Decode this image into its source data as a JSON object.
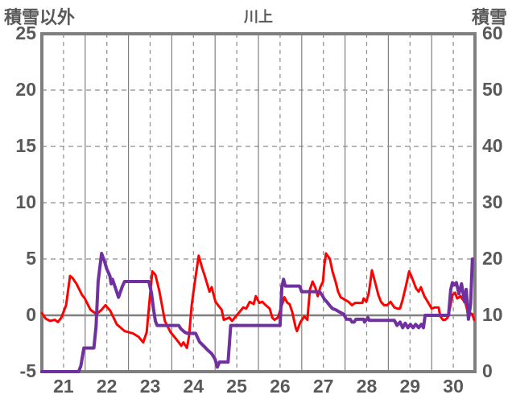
{
  "page": {
    "background": "#ffffff",
    "text_color": "#595959",
    "grid_solid_color": "#808080",
    "grid_dashed_color": "#8c8c8c",
    "border_color": "#7f7f7f"
  },
  "chart_data": {
    "type": "line",
    "title": "川上",
    "grid": true,
    "legend": "none",
    "left_axis": {
      "title": "積雪以外",
      "min": -5,
      "max": 25,
      "tick_interval": 5,
      "ticks": [
        25,
        20,
        15,
        10,
        5,
        0,
        -5
      ]
    },
    "right_axis": {
      "title": "積雪",
      "min": 0,
      "max": 60,
      "tick_interval": 10,
      "ticks": [
        60,
        50,
        40,
        30,
        20,
        10,
        0
      ]
    },
    "x_axis": {
      "tick_labels": [
        "21",
        "22",
        "23",
        "24",
        "25",
        "26",
        "27",
        "28",
        "29",
        "30"
      ],
      "range_days": [
        21,
        31
      ],
      "solid_gridlines": "day-boundaries",
      "dashed_gridlines": "half-days",
      "labels_at": "noon"
    },
    "series": [
      {
        "name": "積雪以外",
        "axis": "left",
        "color": "#ff0000",
        "width": 3,
        "points": [
          [
            21.0,
            0.2
          ],
          [
            21.09,
            -0.3
          ],
          [
            21.19,
            -0.5
          ],
          [
            21.3,
            -0.4
          ],
          [
            21.37,
            -0.6
          ],
          [
            21.45,
            -0.2
          ],
          [
            21.56,
            0.9
          ],
          [
            21.65,
            3.5
          ],
          [
            21.71,
            3.3
          ],
          [
            21.8,
            2.8
          ],
          [
            21.93,
            1.8
          ],
          [
            21.99,
            1.5
          ],
          [
            22.12,
            0.5
          ],
          [
            22.26,
            0.1
          ],
          [
            22.38,
            0.5
          ],
          [
            22.47,
            0.9
          ],
          [
            22.58,
            0.4
          ],
          [
            22.73,
            -0.8
          ],
          [
            22.91,
            -1.4
          ],
          [
            23.1,
            -1.6
          ],
          [
            23.23,
            -1.9
          ],
          [
            23.34,
            -2.4
          ],
          [
            23.42,
            -1.5
          ],
          [
            23.49,
            1.5
          ],
          [
            23.55,
            3.9
          ],
          [
            23.62,
            3.6
          ],
          [
            23.71,
            2.2
          ],
          [
            23.84,
            -0.5
          ],
          [
            23.97,
            -1.5
          ],
          [
            24.12,
            -2.2
          ],
          [
            24.22,
            -2.7
          ],
          [
            24.27,
            -2.4
          ],
          [
            24.35,
            -2.9
          ],
          [
            24.4,
            -1.8
          ],
          [
            24.46,
            0.9
          ],
          [
            24.53,
            2.9
          ],
          [
            24.62,
            5.3
          ],
          [
            24.7,
            4.2
          ],
          [
            24.77,
            3.4
          ],
          [
            24.87,
            2.1
          ],
          [
            24.92,
            2.5
          ],
          [
            25.01,
            1.2
          ],
          [
            25.09,
            0.8
          ],
          [
            25.15,
            0.5
          ],
          [
            25.2,
            -0.4
          ],
          [
            25.33,
            -0.2
          ],
          [
            25.39,
            -0.5
          ],
          [
            25.52,
            0.1
          ],
          [
            25.65,
            0.7
          ],
          [
            25.72,
            0.6
          ],
          [
            25.8,
            1.2
          ],
          [
            25.89,
            1.0
          ],
          [
            25.94,
            1.7
          ],
          [
            26.02,
            1.1
          ],
          [
            26.09,
            1.2
          ],
          [
            26.17,
            0.9
          ],
          [
            26.26,
            0.6
          ],
          [
            26.32,
            -0.2
          ],
          [
            26.37,
            -0.4
          ],
          [
            26.45,
            -0.2
          ],
          [
            26.54,
            0.9
          ],
          [
            26.6,
            1.6
          ],
          [
            26.67,
            1.1
          ],
          [
            26.72,
            1.0
          ],
          [
            26.78,
            0.3
          ],
          [
            26.86,
            -1.1
          ],
          [
            26.89,
            -1.4
          ],
          [
            26.97,
            -0.6
          ],
          [
            27.06,
            -0.1
          ],
          [
            27.13,
            -0.4
          ],
          [
            27.19,
            2.3
          ],
          [
            27.25,
            3.0
          ],
          [
            27.32,
            2.4
          ],
          [
            27.37,
            1.7
          ],
          [
            27.43,
            2.5
          ],
          [
            27.49,
            3.0
          ],
          [
            27.52,
            4.4
          ],
          [
            27.56,
            5.5
          ],
          [
            27.65,
            5.0
          ],
          [
            27.71,
            3.9
          ],
          [
            27.78,
            3.0
          ],
          [
            27.84,
            2.1
          ],
          [
            27.9,
            1.6
          ],
          [
            27.99,
            1.4
          ],
          [
            28.08,
            1.2
          ],
          [
            28.16,
            0.9
          ],
          [
            28.23,
            1.1
          ],
          [
            28.32,
            1.1
          ],
          [
            28.4,
            1.1
          ],
          [
            28.43,
            1.5
          ],
          [
            28.49,
            1.2
          ],
          [
            28.55,
            2.0
          ],
          [
            28.62,
            4.0
          ],
          [
            28.71,
            2.7
          ],
          [
            28.77,
            1.8
          ],
          [
            28.83,
            1.2
          ],
          [
            28.9,
            0.9
          ],
          [
            28.97,
            0.9
          ],
          [
            29.05,
            1.2
          ],
          [
            29.14,
            0.7
          ],
          [
            29.21,
            0.6
          ],
          [
            29.27,
            0.6
          ],
          [
            29.33,
            1.4
          ],
          [
            29.4,
            2.5
          ],
          [
            29.48,
            3.9
          ],
          [
            29.53,
            3.5
          ],
          [
            29.59,
            2.9
          ],
          [
            29.64,
            2.4
          ],
          [
            29.7,
            2.1
          ],
          [
            29.75,
            2.5
          ],
          [
            29.83,
            1.7
          ],
          [
            29.88,
            1.4
          ],
          [
            29.94,
            1.0
          ],
          [
            30.0,
            0.6
          ],
          [
            30.07,
            0.7
          ],
          [
            30.16,
            0.7
          ],
          [
            30.2,
            -0.1
          ],
          [
            30.26,
            -0.4
          ],
          [
            30.31,
            -0.4
          ],
          [
            30.37,
            -0.2
          ],
          [
            30.42,
            0.6
          ],
          [
            30.48,
            1.8
          ],
          [
            30.54,
            2.0
          ],
          [
            30.59,
            1.5
          ],
          [
            30.67,
            1.7
          ],
          [
            30.72,
            1.4
          ],
          [
            30.78,
            1.1
          ],
          [
            30.83,
            0.3
          ],
          [
            30.89,
            0.2
          ],
          [
            30.94,
            0.1
          ],
          [
            30.98,
            -0.4
          ]
        ]
      },
      {
        "name": "積雪",
        "axis": "right",
        "color": "#7030a0",
        "width": 4,
        "points": [
          [
            21.0,
            0
          ],
          [
            21.85,
            0
          ],
          [
            21.9,
            1.0
          ],
          [
            21.97,
            4.2
          ],
          [
            22.2,
            4.2
          ],
          [
            22.25,
            8.0
          ],
          [
            22.3,
            16.0
          ],
          [
            22.38,
            21.0
          ],
          [
            22.45,
            19.5
          ],
          [
            22.5,
            18.2
          ],
          [
            22.57,
            17.0
          ],
          [
            22.6,
            15.6
          ],
          [
            22.63,
            16.4
          ],
          [
            22.7,
            14.8
          ],
          [
            22.77,
            13.2
          ],
          [
            22.86,
            15.2
          ],
          [
            22.91,
            16.0
          ],
          [
            23.47,
            16.0
          ],
          [
            23.53,
            14.0
          ],
          [
            23.58,
            11.0
          ],
          [
            23.62,
            9.0
          ],
          [
            23.66,
            8.2
          ],
          [
            24.16,
            8.2
          ],
          [
            24.21,
            7.6
          ],
          [
            24.3,
            7.0
          ],
          [
            24.36,
            6.8
          ],
          [
            24.55,
            6.8
          ],
          [
            24.64,
            5.3
          ],
          [
            24.77,
            4.3
          ],
          [
            24.83,
            3.8
          ],
          [
            24.92,
            3.2
          ],
          [
            25.0,
            2.2
          ],
          [
            25.05,
            0.8
          ],
          [
            25.1,
            1.7
          ],
          [
            25.3,
            1.7
          ],
          [
            25.36,
            8.2
          ],
          [
            26.5,
            8.2
          ],
          [
            26.54,
            15.0
          ],
          [
            26.58,
            16.4
          ],
          [
            26.62,
            15.2
          ],
          [
            26.95,
            15.2
          ],
          [
            27.0,
            14.2
          ],
          [
            27.41,
            14.2
          ],
          [
            27.47,
            13.6
          ],
          [
            27.52,
            12.9
          ],
          [
            27.6,
            12.2
          ],
          [
            27.65,
            11.7
          ],
          [
            27.71,
            11.2
          ],
          [
            27.78,
            11.0
          ],
          [
            27.87,
            10.6
          ],
          [
            27.97,
            10.2
          ],
          [
            28.03,
            9.3
          ],
          [
            28.12,
            9.3
          ],
          [
            28.16,
            8.8
          ],
          [
            28.21,
            8.8
          ],
          [
            28.25,
            9.3
          ],
          [
            28.43,
            9.3
          ],
          [
            28.45,
            8.8
          ],
          [
            28.53,
            9.6
          ],
          [
            28.56,
            9.1
          ],
          [
            29.14,
            9.1
          ],
          [
            29.2,
            8.2
          ],
          [
            29.27,
            8.8
          ],
          [
            29.33,
            7.8
          ],
          [
            29.39,
            8.6
          ],
          [
            29.45,
            7.8
          ],
          [
            29.51,
            8.4
          ],
          [
            29.57,
            7.8
          ],
          [
            29.63,
            8.4
          ],
          [
            29.7,
            7.8
          ],
          [
            29.76,
            8.4
          ],
          [
            29.81,
            7.8
          ],
          [
            29.85,
            10.0
          ],
          [
            30.39,
            10.0
          ],
          [
            30.44,
            14.6
          ],
          [
            30.48,
            15.8
          ],
          [
            30.53,
            15.4
          ],
          [
            30.57,
            15.8
          ],
          [
            30.6,
            14.8
          ],
          [
            30.63,
            13.8
          ],
          [
            30.69,
            15.6
          ],
          [
            30.76,
            12.4
          ],
          [
            30.8,
            14.6
          ],
          [
            30.85,
            9.3
          ],
          [
            30.9,
            12.0
          ],
          [
            30.94,
            20.0
          ]
        ]
      }
    ]
  }
}
